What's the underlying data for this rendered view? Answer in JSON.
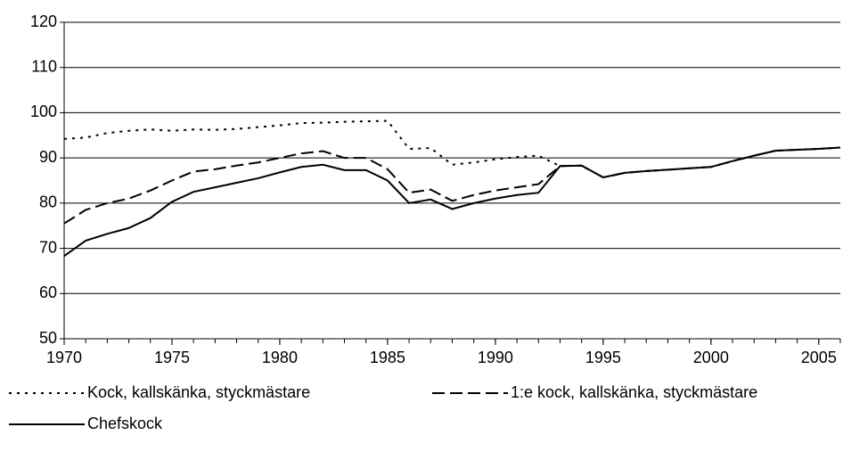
{
  "chart_data": {
    "type": "line",
    "x": [
      1970,
      1971,
      1972,
      1973,
      1974,
      1975,
      1976,
      1977,
      1978,
      1979,
      1980,
      1981,
      1982,
      1983,
      1984,
      1985,
      1986,
      1987,
      1988,
      1989,
      1990,
      1991,
      1992,
      1993,
      1994,
      1995,
      1996,
      1997,
      1998,
      1999,
      2000,
      2001,
      2002,
      2003,
      2004,
      2005,
      2006
    ],
    "series": [
      {
        "name": "Kock, kallskänka, styckmästare",
        "color": "#000000",
        "style": "dotted",
        "values": [
          94.2,
          94.5,
          95.5,
          96,
          96.3,
          96,
          96.3,
          96.2,
          96.4,
          96.8,
          97.2,
          97.7,
          97.8,
          98,
          98.1,
          98.2,
          92,
          92.2,
          88.5,
          89,
          89.7,
          90.2,
          90.5,
          88.2,
          88.3,
          85.7,
          86.7,
          87.1,
          87.4,
          87.7,
          88,
          89.3,
          90.5,
          91.6,
          91.8,
          92,
          92.3
        ]
      },
      {
        "name": "1:e kock, kallskänka, styckmästare",
        "color": "#000000",
        "style": "dashed",
        "values": [
          75.5,
          78.5,
          80,
          81,
          82.8,
          85,
          87,
          87.5,
          88.3,
          89,
          90,
          91,
          91.5,
          90,
          90,
          87.5,
          82.3,
          83,
          80.5,
          81.8,
          82.8,
          83.5,
          84.2,
          88.2,
          88.3,
          85.7,
          86.7,
          87.1,
          87.4,
          87.7,
          88,
          89.3,
          90.5,
          91.6,
          91.8,
          92,
          92.3
        ]
      },
      {
        "name": "Chefskock",
        "color": "#000000",
        "style": "solid",
        "values": [
          68.3,
          71.7,
          73.2,
          74.5,
          76.7,
          80.3,
          82.5,
          83.5,
          84.5,
          85.5,
          86.8,
          88,
          88.5,
          87.3,
          87.3,
          85,
          80,
          80.8,
          78.7,
          80,
          81,
          81.8,
          82.3,
          88.2,
          88.3,
          85.7,
          86.7,
          87.1,
          87.4,
          87.7,
          88,
          89.3,
          90.5,
          91.6,
          91.8,
          92,
          92.3
        ]
      }
    ],
    "xlim": [
      1970,
      2006
    ],
    "xticks": [
      1970,
      1975,
      1980,
      1985,
      1990,
      1995,
      2000,
      2005
    ],
    "ylim": [
      50,
      120
    ],
    "yticks": [
      50,
      60,
      70,
      80,
      90,
      100,
      110,
      120
    ],
    "grid": true
  }
}
